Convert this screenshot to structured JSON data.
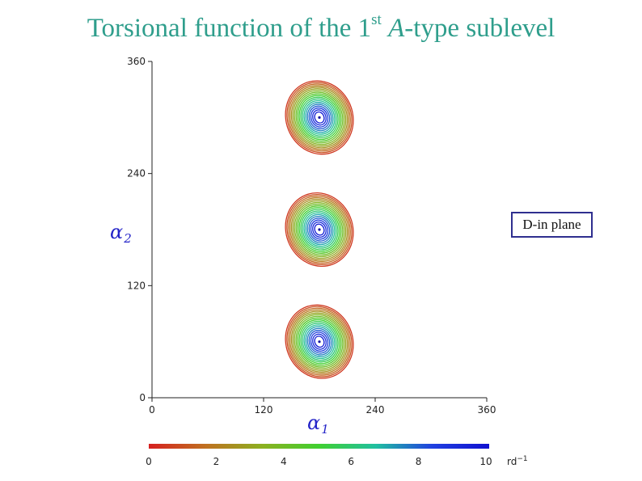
{
  "title": {
    "prefix": "Torsional function of the 1",
    "sup": "st",
    "italic": "A",
    "suffix": "-type sublevel"
  },
  "annotation": "D-in plane",
  "colors": {
    "title": "#2f9e8c",
    "axis_label": "#2424c8",
    "colorbar_stops": [
      "#d62020",
      "#c07020",
      "#8cb020",
      "#40d030",
      "#20c0a0",
      "#2040e0",
      "#1010d0"
    ]
  },
  "chart_data": {
    "type": "contour",
    "xlabel": "α",
    "xlabel_sub": "1",
    "ylabel": "α",
    "ylabel_sub": "2",
    "xlim": [
      0,
      360
    ],
    "ylim": [
      0,
      360
    ],
    "x_ticks": [
      "0",
      "120",
      "240",
      "360"
    ],
    "y_ticks": [
      "0",
      "120",
      "240",
      "360"
    ],
    "grid": false,
    "peaks": [
      {
        "x": 180,
        "y": 60
      },
      {
        "x": 180,
        "y": 180
      },
      {
        "x": 180,
        "y": 300
      }
    ],
    "contour_levels": [
      0.5,
      1,
      1.5,
      2,
      2.5,
      3,
      3.5,
      4,
      4.5,
      5,
      5.5,
      6,
      6.5,
      7,
      7.5,
      8,
      8.5,
      9,
      9.5
    ],
    "colorbar": {
      "ticks": [
        "0",
        "2",
        "4",
        "6",
        "8",
        "10"
      ],
      "range": [
        0,
        10
      ],
      "unit": "rd",
      "unit_sup": "−1"
    }
  }
}
